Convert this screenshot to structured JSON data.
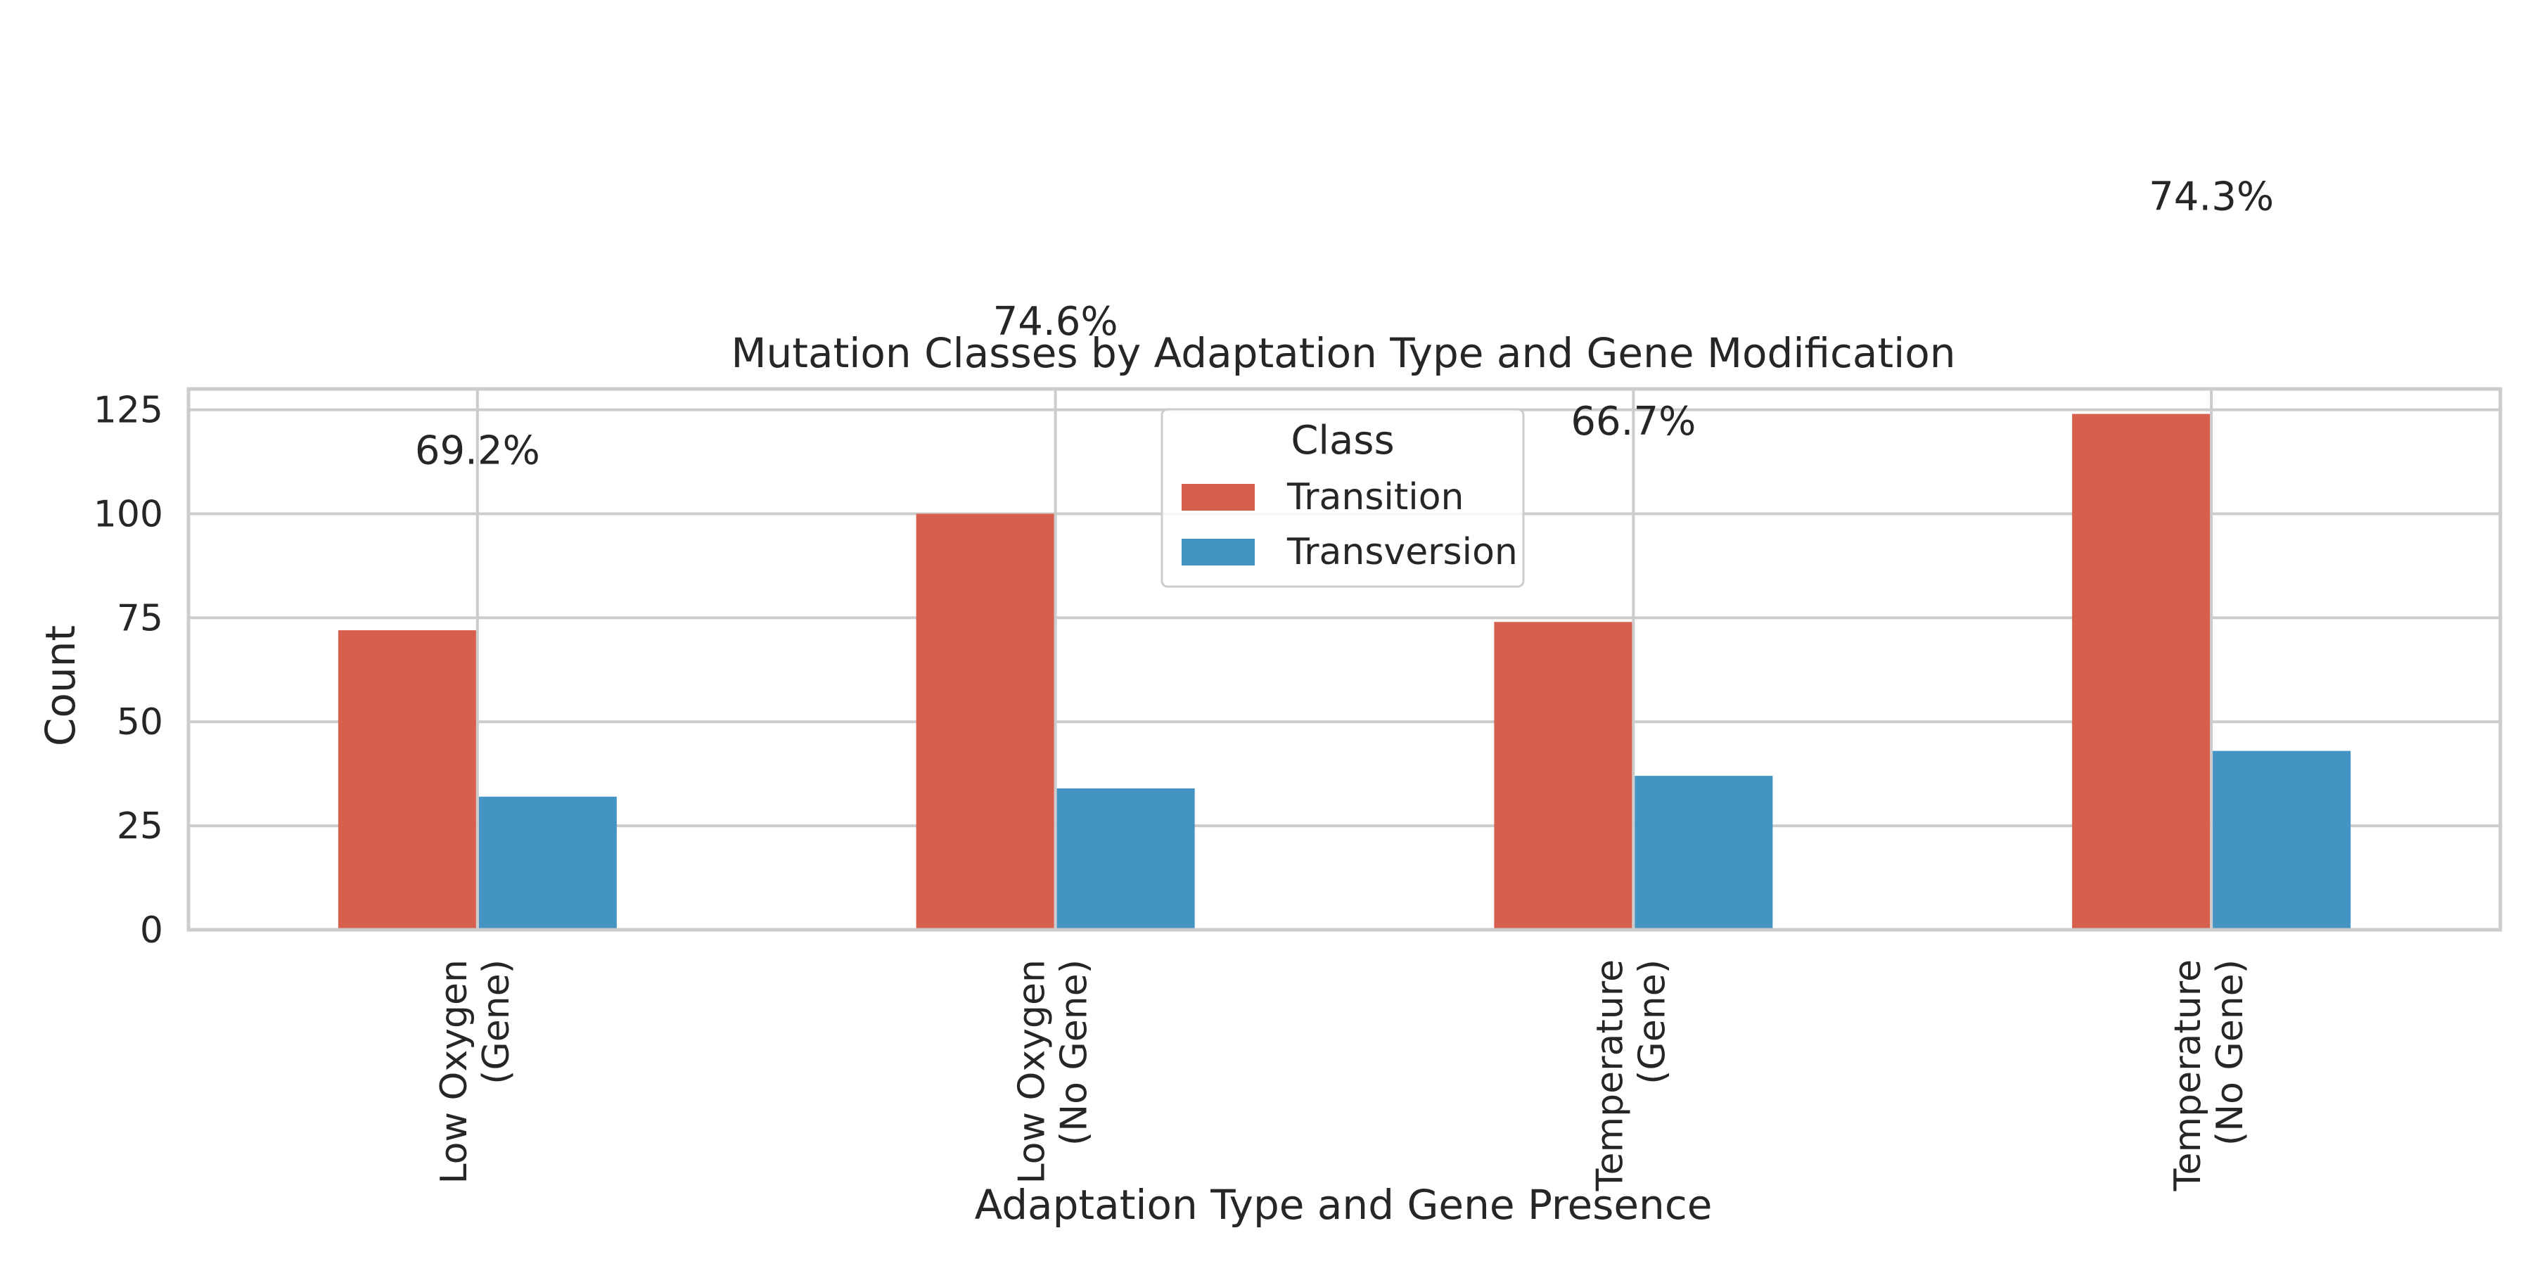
{
  "chart_data": {
    "type": "bar",
    "title": "Mutation Classes by Adaptation Type and Gene Modification",
    "xlabel": "Adaptation Type and Gene Presence",
    "ylabel": "Count",
    "ylim": [
      0,
      130
    ],
    "yticks": [
      "0",
      "25",
      "50",
      "75",
      "100",
      "125"
    ],
    "grid": true,
    "categories": [
      [
        "Low Oxygen",
        "(Gene)"
      ],
      [
        "Low Oxygen",
        "(No Gene)"
      ],
      [
        "Temperature",
        "(Gene)"
      ],
      [
        "Temperature",
        "(No Gene)"
      ]
    ],
    "series": [
      {
        "name": "Transition",
        "color": "#d6604d",
        "values": [
          72,
          100,
          74,
          124
        ]
      },
      {
        "name": "Transversion",
        "color": "#4393c3",
        "values": [
          32,
          34,
          37,
          43
        ]
      }
    ],
    "annotations": [
      {
        "text": "69.2%",
        "y": 112
      },
      {
        "text": "74.6%",
        "y": 143
      },
      {
        "text": "66.7%",
        "y": 119
      },
      {
        "text": "74.3%",
        "y": 173
      }
    ],
    "legend": {
      "title": "Class",
      "position": "upper-center"
    }
  }
}
